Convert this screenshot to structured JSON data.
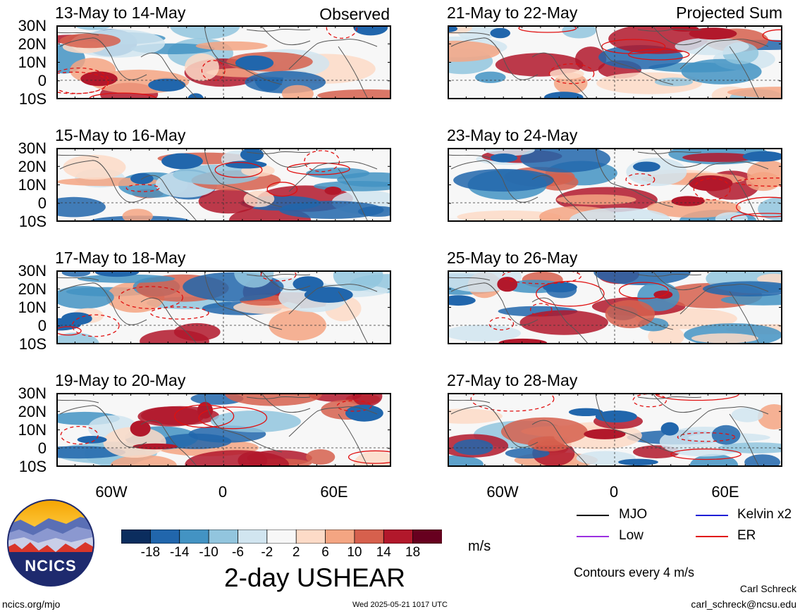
{
  "panels": [
    {
      "title": "13-May to 14-May",
      "tag": "Observed",
      "seed": 1
    },
    {
      "title": "21-May to 22-May",
      "tag": "Projected Sum",
      "seed": 5
    },
    {
      "title": "15-May to 16-May",
      "tag": "",
      "seed": 2
    },
    {
      "title": "23-May to 24-May",
      "tag": "",
      "seed": 6
    },
    {
      "title": "17-May to 18-May",
      "tag": "",
      "seed": 3
    },
    {
      "title": "25-May to 26-May",
      "tag": "",
      "seed": 7
    },
    {
      "title": "19-May to 20-May",
      "tag": "",
      "seed": 4
    },
    {
      "title": "27-May to 28-May",
      "tag": "",
      "seed": 8
    }
  ],
  "lat_labels": [
    "30N",
    "20N",
    "10N",
    "0",
    "10S"
  ],
  "lon_labels": [
    "60W",
    "0",
    "60E"
  ],
  "colorbar": {
    "ticks": [
      "-18",
      "-14",
      "-10",
      "-6",
      "-2",
      "2",
      "6",
      "10",
      "14",
      "18"
    ],
    "colors": [
      "#0b2d5e",
      "#2166ac",
      "#4393c3",
      "#92c5de",
      "#d1e5f0",
      "#f7f7f7",
      "#fddbc7",
      "#f4a582",
      "#d6604d",
      "#b2182b",
      "#67001f"
    ],
    "unit": "m/s",
    "title": "2-day USHEAR"
  },
  "legend": {
    "items": [
      {
        "label": "MJO",
        "color": "#000000"
      },
      {
        "label": "Kelvin x2",
        "color": "#1f1fd6"
      },
      {
        "label": "Low",
        "color": "#9b30e0"
      },
      {
        "label": "ER",
        "color": "#e01010"
      }
    ],
    "note": "Contours every 4 m/s"
  },
  "logo": {
    "text": "NCICS"
  },
  "footer": {
    "left": "ncics.org/mjo",
    "center": "Wed 2025-05-21 1017 UTC",
    "author": "Carl Schreck",
    "email": "carl_schreck@ncsu.edu"
  }
}
